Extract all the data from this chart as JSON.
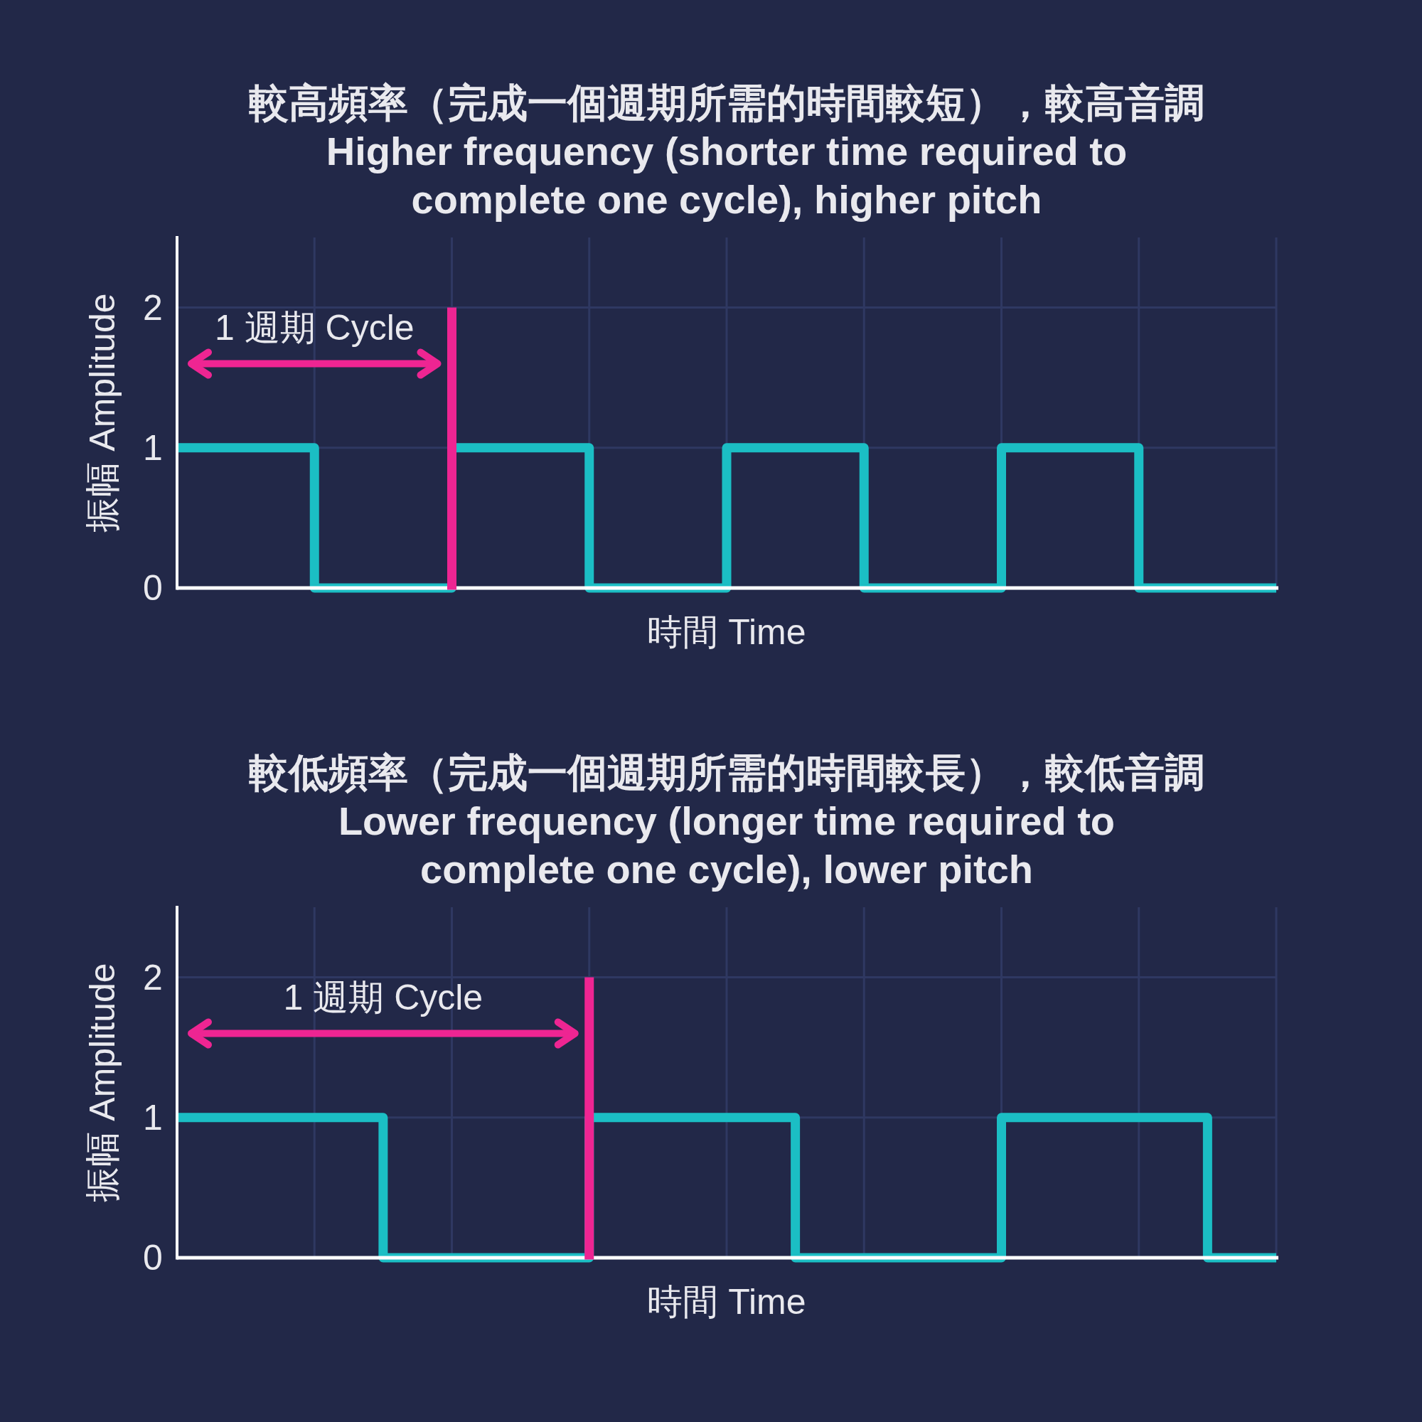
{
  "chart_data": [
    {
      "type": "step",
      "title": "較高頻率（完成一個週期所需的時間較短），較高音調",
      "subtitle": "Higher frequency (shorter time required to complete one cycle), higher pitch",
      "xlabel": "時間 Time",
      "ylabel": "振幅 Amplitude",
      "categories": [
        null,
        null,
        null,
        null,
        null,
        null,
        null,
        null,
        null
      ],
      "values": [
        1,
        0,
        1,
        0,
        1,
        0,
        1,
        0,
        0
      ],
      "color": "#1bbec4",
      "ylim": [
        0,
        2.5
      ],
      "yticks": [
        0,
        1,
        2
      ],
      "grid": true,
      "tick_labels": "y",
      "annotations": [
        "1 週期 Cycle"
      ]
    },
    {
      "type": "step",
      "title": "較低頻率（完成一個週期所需的時間較長），較低音調",
      "subtitle": "Lower frequency (longer time required to complete one cycle), lower pitch",
      "xlabel": "時間 Time",
      "ylabel": "振幅 Amplitude",
      "categories": [
        null,
        null,
        null,
        null,
        null,
        null,
        null,
        null,
        null,
        null,
        null,
        null,
        null,
        null,
        null,
        null,
        null
      ],
      "values": [
        1,
        1,
        1,
        0,
        0,
        0,
        1,
        1,
        1,
        0,
        0,
        0,
        1,
        1,
        1,
        0,
        0
      ],
      "color": "#1bbec4",
      "ylim": [
        0,
        2.5
      ],
      "yticks": [
        0,
        1,
        2
      ],
      "grid": true,
      "tick_labels": "y",
      "annotations": [
        "1 週期 Cycle"
      ]
    }
  ]
}
